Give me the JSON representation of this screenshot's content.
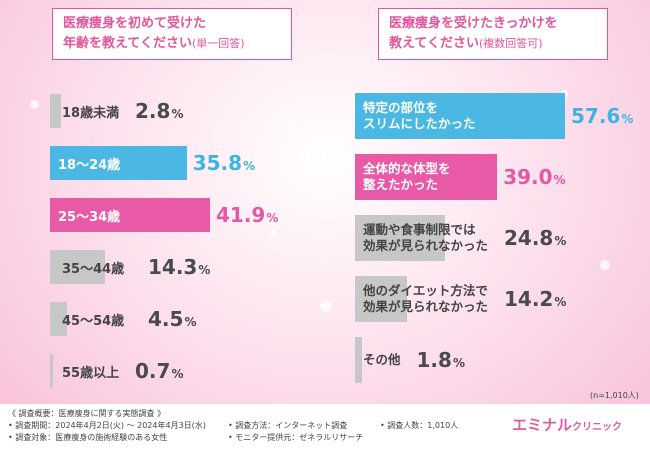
{
  "left_title_line1": "医療痩身を初めて受けた",
  "left_title_line2": "年齢を教えてください",
  "left_title_note": "(単一回答)",
  "right_title_line1": "医療痩身を受けたきっかけを",
  "right_title_line2": "教えてください",
  "right_title_note": "(複数回答可)",
  "sample_size": "(n=1,010人)",
  "footer": {
    "overview": "《 調査概要：医療痩身に関する実態調査 》",
    "period": "• 調査期間：2024年4月2日(火) ～ 2024年4月3日(水)",
    "target": "• 調査対象：医療痩身の施術経験のある女性",
    "method": "• 調査方法：インターネット調査",
    "provider": "• モニター提供元：ゼネラルリサーチ",
    "count": "• 調査人数：1,010人"
  },
  "logo": {
    "main": "エミナル",
    "sub": "クリニック"
  },
  "colors": {
    "pink": "#e85aa6",
    "blue": "#4ab8e2",
    "grey": "#c7c7c7"
  },
  "chart_data": [
    {
      "type": "bar",
      "title": "医療痩身を初めて受けた年齢を教えてください(単一回答)",
      "categories": [
        "18歳未満",
        "18〜24歳",
        "25〜34歳",
        "35〜44歳",
        "45〜54歳",
        "55歳以上"
      ],
      "values": [
        2.8,
        35.8,
        41.9,
        14.3,
        4.5,
        0.7
      ],
      "value_labels": [
        {
          "num": "2.8",
          "unit": "%"
        },
        {
          "num": "35.8",
          "unit": "%"
        },
        {
          "num": "41.9",
          "unit": "%"
        },
        {
          "num": "14.3",
          "unit": "%"
        },
        {
          "num": "4.5",
          "unit": "%"
        },
        {
          "num": "0.7",
          "unit": "%"
        }
      ],
      "highlight": [
        "none",
        "blue",
        "pink",
        "none",
        "none",
        "none"
      ],
      "orientation": "horizontal",
      "unit": "%"
    },
    {
      "type": "bar",
      "title": "医療痩身を受けたきっかけを教えてください(複数回答可)",
      "categories": [
        "特定の部位を\nスリムにしたかった",
        "全体的な体型を\n整えたかった",
        "運動や食事制限では\n効果が見られなかった",
        "他のダイエット方法で\n効果が見られなかった",
        "その他"
      ],
      "values": [
        57.6,
        39.0,
        24.8,
        14.2,
        1.8
      ],
      "value_labels": [
        {
          "num": "57.6",
          "unit": "%"
        },
        {
          "num": "39.0",
          "unit": "%"
        },
        {
          "num": "24.8",
          "unit": "%"
        },
        {
          "num": "14.2",
          "unit": "%"
        },
        {
          "num": "1.8",
          "unit": "%"
        }
      ],
      "highlight": [
        "blue",
        "pink",
        "none",
        "none",
        "none"
      ],
      "orientation": "horizontal",
      "unit": "%"
    }
  ]
}
